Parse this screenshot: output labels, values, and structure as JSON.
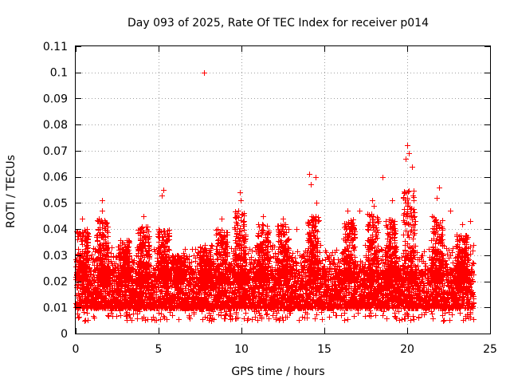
{
  "chart_data": {
    "type": "scatter",
    "title": "Day 093 of 2025, Rate Of TEC Index for receiver p014",
    "xlabel": "GPS time / hours",
    "ylabel": "ROTI / TECUs",
    "xlim": [
      0,
      25
    ],
    "ylim": [
      0,
      0.11
    ],
    "xticks": [
      0,
      5,
      10,
      15,
      20,
      25
    ],
    "xtick_labels": [
      "0",
      "5",
      "10",
      "15",
      "20",
      "25"
    ],
    "yticks": [
      0,
      0.01,
      0.02,
      0.03,
      0.04,
      0.05,
      0.06,
      0.07,
      0.08,
      0.09,
      0.1,
      0.11
    ],
    "ytick_labels": [
      "0",
      "0.01",
      "0.02",
      "0.03",
      "0.04",
      "0.05",
      "0.06",
      "0.07",
      "0.08",
      "0.09",
      "0.1",
      "0.11"
    ],
    "grid": true,
    "marker": "+",
    "color": "#ff0000",
    "data_x_range": [
      0,
      24
    ],
    "typical_band": [
      0.007,
      0.025
    ],
    "notable_points": [
      {
        "x": 7.75,
        "y": 0.1
      },
      {
        "x": 20.0,
        "y": 0.072
      },
      {
        "x": 20.1,
        "y": 0.069
      },
      {
        "x": 20.3,
        "y": 0.064
      },
      {
        "x": 19.9,
        "y": 0.067
      },
      {
        "x": 14.1,
        "y": 0.061
      },
      {
        "x": 14.45,
        "y": 0.06
      },
      {
        "x": 18.5,
        "y": 0.06
      },
      {
        "x": 14.2,
        "y": 0.057
      },
      {
        "x": 21.9,
        "y": 0.056
      },
      {
        "x": 5.3,
        "y": 0.055
      },
      {
        "x": 5.2,
        "y": 0.053
      },
      {
        "x": 9.9,
        "y": 0.054
      },
      {
        "x": 9.95,
        "y": 0.051
      },
      {
        "x": 1.6,
        "y": 0.051
      },
      {
        "x": 1.6,
        "y": 0.047
      },
      {
        "x": 17.9,
        "y": 0.051
      },
      {
        "x": 18.0,
        "y": 0.049
      },
      {
        "x": 19.1,
        "y": 0.051
      },
      {
        "x": 22.6,
        "y": 0.047
      },
      {
        "x": 21.8,
        "y": 0.052
      },
      {
        "x": 14.5,
        "y": 0.05
      },
      {
        "x": 4.1,
        "y": 0.045
      },
      {
        "x": 0.4,
        "y": 0.044
      },
      {
        "x": 16.4,
        "y": 0.047
      },
      {
        "x": 17.1,
        "y": 0.047
      },
      {
        "x": 11.3,
        "y": 0.045
      },
      {
        "x": 12.5,
        "y": 0.044
      },
      {
        "x": 20.5,
        "y": 0.043
      },
      {
        "x": 23.3,
        "y": 0.042
      },
      {
        "x": 23.8,
        "y": 0.043
      },
      {
        "x": 8.8,
        "y": 0.044
      },
      {
        "x": 13.3,
        "y": 0.04
      },
      {
        "x": 7.8,
        "y": 0.034
      }
    ],
    "peaks": [
      {
        "x": 0.4,
        "y": 0.04
      },
      {
        "x": 1.6,
        "y": 0.044
      },
      {
        "x": 2.9,
        "y": 0.036
      },
      {
        "x": 4.1,
        "y": 0.042
      },
      {
        "x": 5.3,
        "y": 0.04
      },
      {
        "x": 6.2,
        "y": 0.03
      },
      {
        "x": 7.8,
        "y": 0.033
      },
      {
        "x": 8.8,
        "y": 0.04
      },
      {
        "x": 9.9,
        "y": 0.047
      },
      {
        "x": 11.3,
        "y": 0.042
      },
      {
        "x": 12.5,
        "y": 0.042
      },
      {
        "x": 14.3,
        "y": 0.045
      },
      {
        "x": 16.5,
        "y": 0.044
      },
      {
        "x": 17.9,
        "y": 0.046
      },
      {
        "x": 19.0,
        "y": 0.044
      },
      {
        "x": 20.1,
        "y": 0.055
      },
      {
        "x": 21.8,
        "y": 0.045
      },
      {
        "x": 23.3,
        "y": 0.038
      }
    ]
  }
}
